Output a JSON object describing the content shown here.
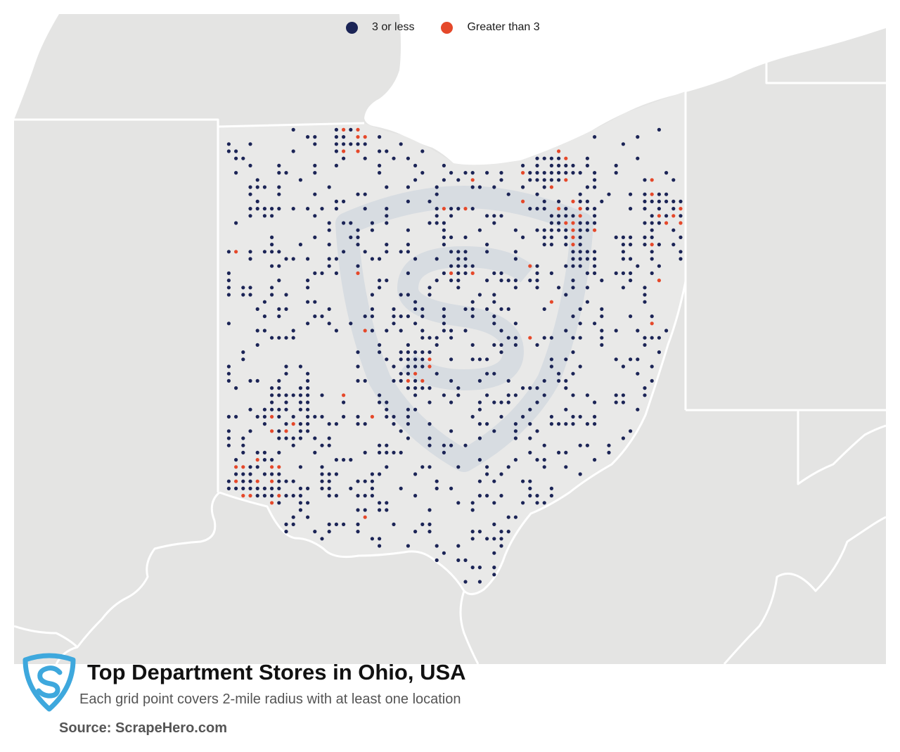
{
  "title": "Top Department Stores in Ohio, USA",
  "subtitle": "Each grid point covers 2-mile radius with at least one location",
  "source": "Source: ScrapeHero.com",
  "legend": [
    {
      "label": "3 or less",
      "color": "#1b2456"
    },
    {
      "label": "Greater than 3",
      "color": "#e5482a"
    }
  ],
  "colors": {
    "land": "#e4e4e3",
    "lake": "#ffffff",
    "border": "#ffffff",
    "watermark": "#aabbd0",
    "logo": "#3ea8dd"
  },
  "icons": {
    "logo": "scrapehero-shield-logo",
    "watermark": "scrapehero-watermark-icon"
  }
}
